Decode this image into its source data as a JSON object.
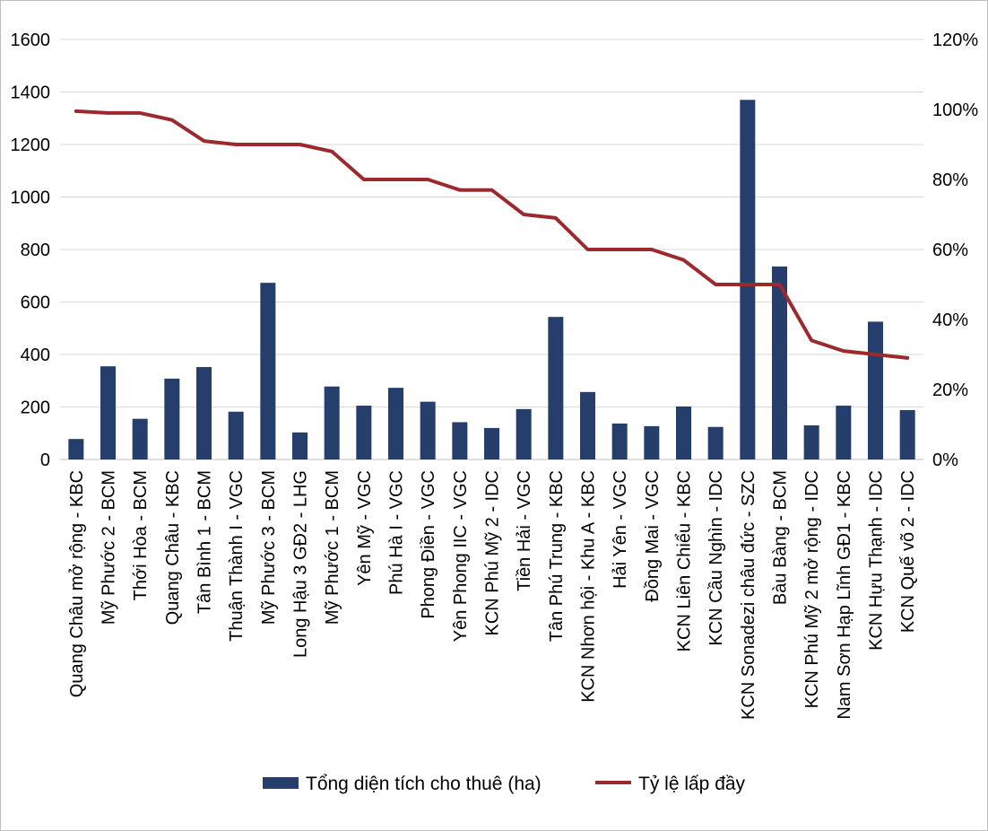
{
  "colors": {
    "bar": "#263E6C",
    "line": "#9B2A2F",
    "grid": "#d9d9d9",
    "axis": "#bfbfbf"
  },
  "chart_data": {
    "type": "bar",
    "categories": [
      "Quang Châu mở rộng  - KBC",
      "Mỹ Phước 2  - BCM",
      "Thới Hòa  - BCM",
      "Quang Châu - KBC",
      "Tân Bình 1 - BCM",
      "Thuận Thành I - VGC",
      "Mỹ Phước 3  - BCM",
      "Long Hậu 3 GĐ2 - LHG",
      "Mỹ Phước 1  - BCM",
      "Yên Mỹ  - VGC",
      "Phú Hà I  - VGC",
      "Phong Điền  - VGC",
      "Yên Phong IIC  - VGC",
      "KCN Phú Mỹ 2  - IDC",
      "Tiền Hải  - VGC",
      "Tân Phú Trung  - KBC",
      "KCN Nhơn hội - Khu A  - KBC",
      "Hải Yên  - VGC",
      "Đồng Mai - VGC",
      "KCN Liên Chiểu  - KBC",
      "KCN Cầu Nghìn  - IDC",
      "KCN Sonadezi châu đức  - SZC",
      "Bàu Bàng  - BCM",
      "KCN Phú Mỹ 2 mở rộng  - IDC",
      "Nam Sơn Hạp Lĩnh GĐ1 - KBC",
      "KCN Hựu Thạnh  - IDC",
      "KCN Quế võ 2  - IDC"
    ],
    "series": [
      {
        "name": "Tổng diện tích cho thuê (ha)",
        "type": "bar",
        "axis": "left",
        "values": [
          78,
          355,
          155,
          308,
          352,
          182,
          673,
          103,
          278,
          205,
          273,
          220,
          142,
          120,
          192,
          543,
          257,
          137,
          127,
          202,
          124,
          1370,
          735,
          130,
          205,
          525,
          188
        ]
      },
      {
        "name": "Tỷ lệ lấp đầy",
        "type": "line",
        "axis": "right",
        "values": [
          0.995,
          0.99,
          0.99,
          0.97,
          0.91,
          0.9,
          0.9,
          0.9,
          0.88,
          0.8,
          0.8,
          0.8,
          0.77,
          0.77,
          0.7,
          0.69,
          0.6,
          0.6,
          0.6,
          0.57,
          0.5,
          0.5,
          0.5,
          0.34,
          0.31,
          0.3,
          0.29
        ]
      }
    ],
    "y_left": {
      "ylim": [
        0,
        1600
      ],
      "ticks": [
        "1600",
        "1400",
        "1200",
        "1000",
        "800",
        "600",
        "400",
        "200",
        "0"
      ]
    },
    "y_right": {
      "ylim": [
        0,
        1.2
      ],
      "ticks": [
        "120%",
        "100%",
        "80%",
        "60%",
        "40%",
        "20%",
        "0%"
      ]
    },
    "legend_position": "bottom",
    "grid": true
  }
}
